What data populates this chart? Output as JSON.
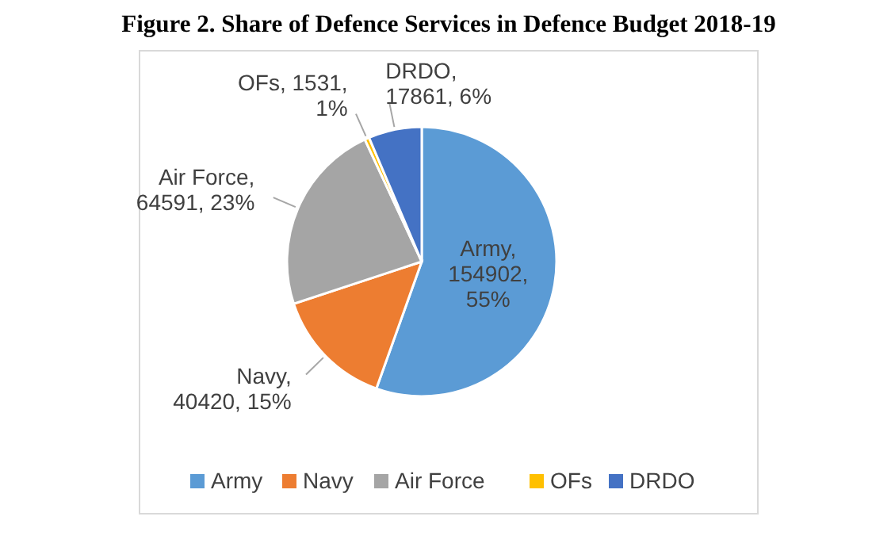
{
  "chart_data": {
    "type": "pie",
    "title": "Figure 2. Share of Defence Services in Defence Budget 2018-19",
    "categories": [
      "Army",
      "Navy",
      "Air Force",
      "OFs",
      "DRDO"
    ],
    "values": [
      154902,
      40420,
      64591,
      1531,
      17861
    ],
    "value_labels": [
      "Army, 154902, 55%",
      "Navy, 40420, 15%",
      "Air Force, 64591, 23%",
      "OFs, 1531, 1%",
      "DRDO, 17861, 6%"
    ],
    "colors": [
      "#5b9bd5",
      "#ed7d31",
      "#a5a5a5",
      "#ffc000",
      "#4472c4"
    ],
    "legend": "bottom"
  }
}
